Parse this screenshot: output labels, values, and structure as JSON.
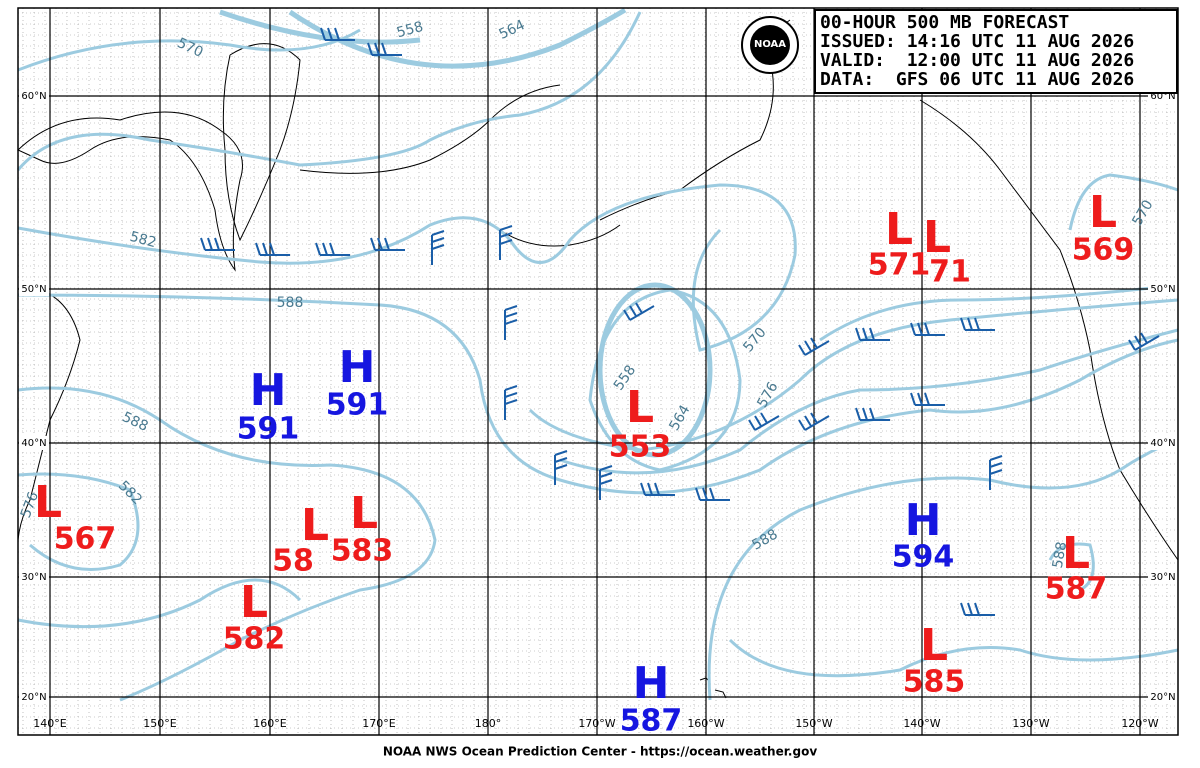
{
  "header": {
    "lines": [
      "00-HOUR 500 MB FORECAST",
      "ISSUED: 14:16 UTC 11 AUG 2026",
      "VALID:  12:00 UTC 11 AUG 2026",
      "DATA:  GFS 06 UTC 11 AUG 2026"
    ],
    "logo": "NOAA"
  },
  "footer": "NOAA NWS Ocean Prediction Center - https://ocean.weather.gov",
  "lat_labels": [
    "60°N",
    "50°N",
    "40°N",
    "30°N",
    "20°N"
  ],
  "lon_labels": [
    "140°E",
    "150°E",
    "160°E",
    "170°E",
    "180°",
    "170°W",
    "160°W",
    "150°W",
    "140°W",
    "130°W",
    "120°W"
  ],
  "centers": [
    {
      "kind": "L",
      "value": "567",
      "color": "#ee1c1c"
    },
    {
      "kind": "H",
      "value": "591",
      "color": "#1616e0"
    },
    {
      "kind": "H",
      "value": "591",
      "color": "#1616e0"
    },
    {
      "kind": "L",
      "value": "58",
      "color": "#ee1c1c"
    },
    {
      "kind": "L",
      "value": "583",
      "color": "#ee1c1c"
    },
    {
      "kind": "L",
      "value": "582",
      "color": "#ee1c1c"
    },
    {
      "kind": "L",
      "value": "553",
      "color": "#ee1c1c"
    },
    {
      "kind": "H",
      "value": "587",
      "color": "#1616e0"
    },
    {
      "kind": "L",
      "value": "571",
      "color": "#ee1c1c"
    },
    {
      "kind": "L",
      "value": "71",
      "color": "#ee1c1c"
    },
    {
      "kind": "L",
      "value": "569",
      "color": "#ee1c1c"
    },
    {
      "kind": "H",
      "value": "594",
      "color": "#1616e0"
    },
    {
      "kind": "L",
      "value": "587",
      "color": "#ee1c1c"
    },
    {
      "kind": "L",
      "value": "585",
      "color": "#ee1c1c"
    }
  ],
  "contour_labels": [
    "570",
    "558",
    "564",
    "582",
    "588",
    "588",
    "582",
    "576",
    "570",
    "558",
    "564",
    "576",
    "588",
    "588",
    "570"
  ]
}
